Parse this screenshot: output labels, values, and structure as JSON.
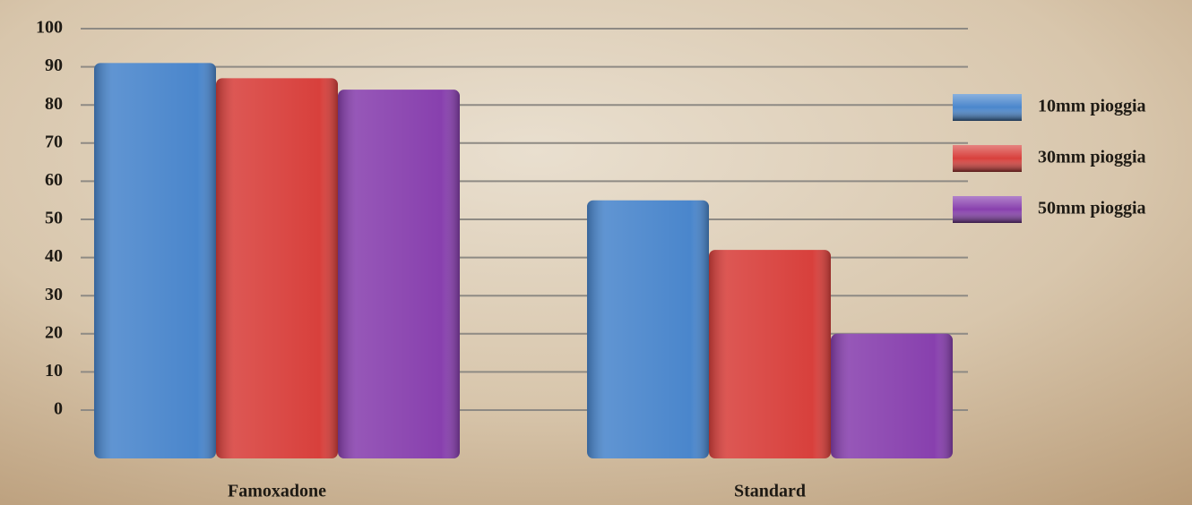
{
  "chart_data": {
    "type": "bar",
    "categories": [
      "Famoxadone",
      "Standard"
    ],
    "series": [
      {
        "name": "10mm pioggia",
        "color": "#4a86cc",
        "values": [
          91,
          55
        ]
      },
      {
        "name": "30mm pioggia",
        "color": "#d8403c",
        "values": [
          87,
          42
        ]
      },
      {
        "name": "50mm pioggia",
        "color": "#8840ae",
        "values": [
          84,
          20
        ]
      }
    ],
    "ylim": [
      0,
      100
    ],
    "yticks": [
      0,
      10,
      20,
      30,
      40,
      50,
      60,
      70,
      80,
      90,
      100
    ],
    "grid": true,
    "legend": "right"
  }
}
